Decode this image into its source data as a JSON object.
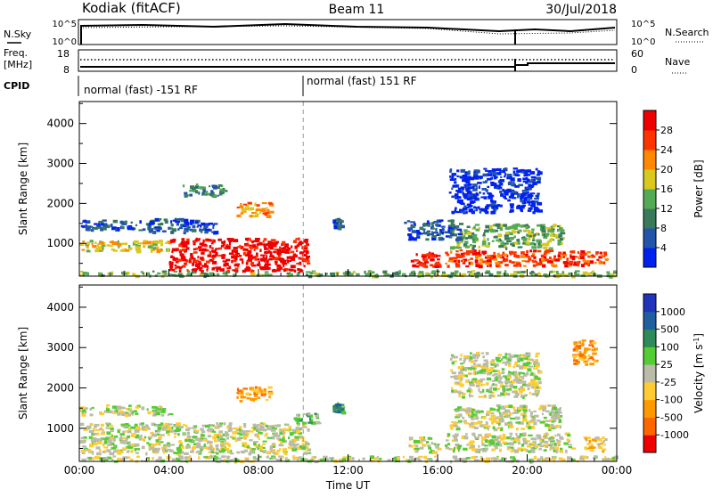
{
  "header": {
    "station": "Kodiak (fitACF)",
    "beam": "Beam 11",
    "date": "30/Jul/2018"
  },
  "summary": {
    "nsky_label": "N.Sky",
    "nsearch_label": "N.Search",
    "noise_ticks": [
      "10^5",
      "10^0"
    ],
    "freq_label_1": "Freq.",
    "freq_label_2": "[MHz]",
    "freq_ticks": [
      "18",
      "8"
    ],
    "nave_label": "Nave",
    "nave_ticks": [
      "60",
      "0"
    ],
    "cpid_label": "CPID",
    "cpid_segments": [
      {
        "text": "normal (fast) -151 RF",
        "start_hour": 0,
        "end_hour": 10
      },
      {
        "text": "normal (fast) 151 RF",
        "start_hour": 10,
        "end_hour": 24
      }
    ]
  },
  "colors": {
    "power": [
      "#0022ee",
      "#2255aa",
      "#3a7a5a",
      "#55aa55",
      "#d8c820",
      "#ff8800",
      "#ff3300",
      "#ee0000"
    ],
    "velocity": [
      "#ee0000",
      "#ff6600",
      "#ff9900",
      "#ffcc33",
      "#bbbbaa",
      "#55cc33",
      "#2e8b57",
      "#1f5fa0",
      "#2233bb"
    ]
  },
  "chart_data": [
    {
      "type": "heatmap",
      "title": "",
      "quantity": "Power",
      "xlabel": "",
      "ylabel": "Slant Range [km]",
      "colorbar_label": "Power [dB]",
      "colorbar_ticks": [
        "4",
        "8",
        "12",
        "16",
        "20",
        "24",
        "28"
      ],
      "xlim_hours": [
        0,
        24
      ],
      "ylim": [
        180,
        4550
      ],
      "yticks": [
        1000,
        2000,
        3000,
        4000
      ],
      "xtick_labels": [
        "00:00",
        "04:00",
        "08:00",
        "12:00",
        "16:00",
        "20:00",
        "00:00"
      ],
      "regions": [
        {
          "t0": 0.0,
          "t1": 24.0,
          "r0": 200,
          "r1": 330,
          "level": 3
        },
        {
          "t0": 0.0,
          "t1": 4.0,
          "r0": 820,
          "r1": 1100,
          "level": 4
        },
        {
          "t0": 0.0,
          "t1": 3.5,
          "r0": 1350,
          "r1": 1600,
          "level": 1
        },
        {
          "t0": 4.0,
          "t1": 10.2,
          "r0": 330,
          "r1": 1150,
          "level": 7
        },
        {
          "t0": 3.0,
          "t1": 6.0,
          "r0": 1300,
          "r1": 1650,
          "level": 1
        },
        {
          "t0": 7.0,
          "t1": 8.5,
          "r0": 1700,
          "r1": 2050,
          "level": 5
        },
        {
          "t0": 4.5,
          "t1": 6.5,
          "r0": 2200,
          "r1": 2500,
          "level": 2
        },
        {
          "t0": 11.3,
          "t1": 11.7,
          "r0": 1400,
          "r1": 1650,
          "level": 1
        },
        {
          "t0": 14.7,
          "t1": 16.0,
          "r0": 430,
          "r1": 800,
          "level": 7
        },
        {
          "t0": 16.3,
          "t1": 23.5,
          "r0": 450,
          "r1": 850,
          "level": 6
        },
        {
          "t0": 16.5,
          "t1": 21.5,
          "r0": 900,
          "r1": 1500,
          "level": 3
        },
        {
          "t0": 14.5,
          "t1": 17.0,
          "r0": 1100,
          "r1": 1600,
          "level": 1
        },
        {
          "t0": 16.5,
          "t1": 20.5,
          "r0": 1800,
          "r1": 2900,
          "level": 0
        }
      ]
    },
    {
      "type": "heatmap",
      "title": "",
      "quantity": "Velocity",
      "xlabel": "Time UT",
      "ylabel": "Slant Range [km]",
      "colorbar_label": "Velocity [m s^-1]",
      "colorbar_ticks": [
        "1000",
        "500",
        "100",
        "25",
        "-25",
        "-100",
        "-500",
        "-1000"
      ],
      "xlim_hours": [
        0,
        24
      ],
      "ylim": [
        180,
        4550
      ],
      "yticks": [
        1000,
        2000,
        3000,
        4000
      ],
      "xtick_labels": [
        "00:00",
        "04:00",
        "08:00",
        "12:00",
        "16:00",
        "20:00",
        "00:00"
      ],
      "regions": [
        {
          "t0": 0.0,
          "t1": 24.0,
          "r0": 200,
          "r1": 330,
          "level": 4
        },
        {
          "t0": 0.0,
          "t1": 10.2,
          "r0": 400,
          "r1": 1150,
          "level": 4
        },
        {
          "t0": 0.0,
          "t1": 4.0,
          "r0": 1350,
          "r1": 1600,
          "level": 4
        },
        {
          "t0": 7.0,
          "t1": 8.5,
          "r0": 1700,
          "r1": 2050,
          "level": 2
        },
        {
          "t0": 9.5,
          "t1": 10.6,
          "r0": 1150,
          "r1": 1400,
          "level": 5
        },
        {
          "t0": 11.3,
          "t1": 11.7,
          "r0": 1400,
          "r1": 1650,
          "level": 6
        },
        {
          "t0": 14.7,
          "t1": 16.0,
          "r0": 430,
          "r1": 800,
          "level": 4
        },
        {
          "t0": 16.3,
          "t1": 22.0,
          "r0": 450,
          "r1": 900,
          "level": 4
        },
        {
          "t0": 22.5,
          "t1": 23.5,
          "r0": 450,
          "r1": 800,
          "level": 3
        },
        {
          "t0": 16.5,
          "t1": 21.5,
          "r0": 1000,
          "r1": 1600,
          "level": 4
        },
        {
          "t0": 16.5,
          "t1": 20.5,
          "r0": 1800,
          "r1": 2900,
          "level": 4
        },
        {
          "t0": 22.0,
          "t1": 23.0,
          "r0": 2600,
          "r1": 3200,
          "level": 2
        }
      ]
    }
  ]
}
